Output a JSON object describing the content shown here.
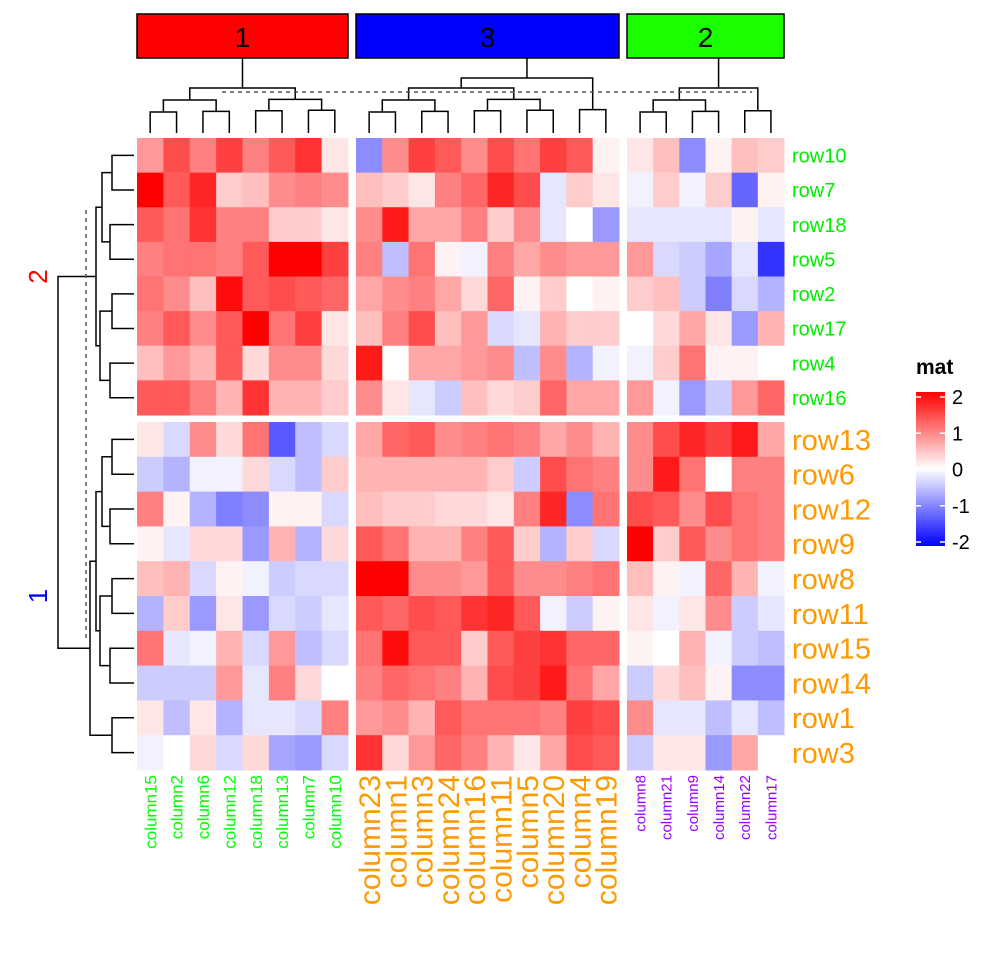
{
  "chart_data": {
    "type": "heatmap",
    "title": "",
    "legend": {
      "title": "mat",
      "ticks": [
        "2",
        "1",
        "0",
        "-1",
        "-2"
      ],
      "colors": {
        "low": "#0000ff",
        "mid": "#ffffff",
        "high": "#ff0000"
      },
      "range": [
        -2,
        2
      ],
      "placement": "right"
    },
    "column_slices": [
      {
        "label": "1",
        "color": "#ff0000",
        "label_color": "#00ff00",
        "columns": [
          "column15",
          "column2",
          "column6",
          "column12",
          "column18",
          "column13",
          "column7",
          "column10"
        ]
      },
      {
        "label": "3",
        "color": "#0000ff",
        "label_color": "#ff9900",
        "columns": [
          "column23",
          "column1",
          "column3",
          "column24",
          "column16",
          "column11",
          "column5",
          "column20",
          "column4",
          "column19"
        ]
      },
      {
        "label": "2",
        "color": "#1aff00",
        "label_color": "#9900ff",
        "columns": [
          "column8",
          "column21",
          "column9",
          "column14",
          "column22",
          "column17"
        ]
      }
    ],
    "row_slices": [
      {
        "label": "2",
        "color": "#ff0000",
        "label_color": "#00ee00",
        "rows": [
          "row10",
          "row7",
          "row18",
          "row5",
          "row2",
          "row17",
          "row4",
          "row16"
        ]
      },
      {
        "label": "1",
        "color": "#0000ff",
        "label_color": "#ff9900",
        "rows": [
          "row13",
          "row6",
          "row12",
          "row9",
          "row8",
          "row11",
          "row15",
          "row14",
          "row1",
          "row3"
        ]
      }
    ],
    "values": [
      [
        0.8,
        1.4,
        1.0,
        1.5,
        1.0,
        1.3,
        1.6,
        0.2,
        -0.9,
        0.9,
        1.5,
        1.3,
        0.9,
        1.4,
        1.1,
        1.5,
        1.3,
        0.1,
        0.2,
        0.5,
        -0.9,
        0.1,
        0.5,
        0.4
      ],
      [
        2.0,
        1.3,
        1.7,
        0.4,
        0.5,
        0.9,
        1.0,
        0.9,
        0.5,
        0.4,
        0.2,
        1.0,
        1.2,
        1.7,
        1.4,
        -0.2,
        0.4,
        0.2,
        -0.1,
        0.4,
        -0.1,
        0.4,
        -1.2,
        0.1
      ],
      [
        1.3,
        1.1,
        1.6,
        1.0,
        1.0,
        0.4,
        0.4,
        0.2,
        0.9,
        1.8,
        0.7,
        0.7,
        1.0,
        0.4,
        0.9,
        -0.2,
        0.0,
        -0.8,
        -0.2,
        -0.2,
        -0.2,
        -0.2,
        0.1,
        -0.2
      ],
      [
        1.0,
        1.1,
        1.1,
        1.0,
        1.3,
        2.0,
        2.0,
        1.5,
        1.0,
        -0.5,
        1.1,
        0.1,
        -0.1,
        1.0,
        0.7,
        0.9,
        0.8,
        0.8,
        0.8,
        -0.3,
        -0.4,
        -0.7,
        -0.2,
        -1.6
      ],
      [
        1.1,
        0.9,
        0.5,
        1.9,
        1.3,
        1.4,
        1.3,
        1.2,
        0.7,
        0.9,
        1.0,
        0.7,
        0.3,
        1.2,
        0.1,
        0.4,
        0.0,
        0.1,
        0.4,
        0.5,
        -0.4,
        -1.0,
        -0.3,
        -0.6
      ],
      [
        1.0,
        1.3,
        0.9,
        1.3,
        2.0,
        1.1,
        1.5,
        0.2,
        0.5,
        1.0,
        1.4,
        0.5,
        0.8,
        -0.3,
        -0.2,
        0.6,
        0.4,
        0.4,
        0.0,
        0.3,
        0.7,
        0.2,
        -0.8,
        0.6
      ],
      [
        0.5,
        0.8,
        0.6,
        1.3,
        0.3,
        0.9,
        0.9,
        0.3,
        1.8,
        0.0,
        0.7,
        0.7,
        0.8,
        0.9,
        -0.5,
        0.9,
        -0.6,
        -0.1,
        -0.1,
        0.4,
        1.1,
        0.1,
        0.1,
        0.0
      ],
      [
        1.3,
        1.3,
        1.0,
        0.6,
        1.6,
        0.6,
        0.6,
        0.4,
        0.9,
        0.2,
        -0.2,
        -0.4,
        0.5,
        0.3,
        0.4,
        1.2,
        0.7,
        0.7,
        0.8,
        -0.1,
        -0.8,
        -0.4,
        0.8,
        1.2
      ],
      [
        0.2,
        -0.3,
        0.9,
        0.3,
        1.1,
        -1.3,
        -0.5,
        -0.3,
        0.7,
        1.2,
        1.3,
        0.9,
        1.0,
        1.1,
        1.0,
        0.7,
        0.9,
        0.6,
        0.9,
        1.4,
        1.7,
        1.5,
        1.8,
        0.7
      ],
      [
        -0.4,
        -0.6,
        -0.1,
        -0.1,
        0.3,
        -0.3,
        -0.5,
        0.4,
        0.6,
        0.6,
        0.6,
        0.6,
        0.6,
        0.4,
        -0.4,
        1.4,
        1.1,
        1.0,
        0.9,
        1.8,
        1.1,
        0.0,
        1.0,
        1.0
      ],
      [
        1.0,
        0.1,
        -0.6,
        -1.0,
        -0.9,
        0.1,
        0.1,
        -0.3,
        0.5,
        0.4,
        0.4,
        0.3,
        0.3,
        0.2,
        1.0,
        1.7,
        -0.9,
        1.1,
        1.4,
        1.3,
        0.9,
        1.4,
        1.1,
        1.0
      ],
      [
        0.1,
        -0.2,
        0.3,
        0.3,
        -0.8,
        0.6,
        -0.6,
        0.3,
        1.3,
        1.1,
        0.6,
        0.6,
        1.0,
        1.3,
        0.4,
        -0.6,
        0.4,
        -0.3,
        2.0,
        0.4,
        1.3,
        0.9,
        1.1,
        1.0
      ],
      [
        0.5,
        0.6,
        -0.3,
        0.1,
        -0.1,
        -0.4,
        -0.3,
        -0.3,
        2.0,
        2.0,
        0.9,
        0.9,
        0.8,
        1.3,
        0.9,
        0.9,
        1.0,
        1.1,
        0.5,
        0.1,
        -0.1,
        1.2,
        0.6,
        -0.1
      ],
      [
        -0.6,
        0.4,
        -0.8,
        0.2,
        -0.8,
        -0.3,
        -0.4,
        -0.2,
        1.3,
        1.2,
        1.4,
        1.3,
        1.6,
        1.7,
        1.3,
        -0.1,
        -0.4,
        0.1,
        0.2,
        -0.1,
        0.2,
        0.9,
        -0.4,
        -0.2
      ],
      [
        1.1,
        -0.2,
        -0.1,
        0.6,
        -0.3,
        0.8,
        -0.5,
        -0.3,
        1.1,
        1.9,
        1.3,
        1.3,
        0.4,
        1.3,
        1.5,
        1.6,
        1.2,
        1.2,
        0.1,
        0.0,
        0.6,
        -0.1,
        -0.4,
        -0.5
      ],
      [
        -0.4,
        -0.4,
        -0.4,
        0.8,
        -0.2,
        1.0,
        0.3,
        0.0,
        1.0,
        1.2,
        1.1,
        1.0,
        0.6,
        1.4,
        1.5,
        1.8,
        1.1,
        0.7,
        -0.4,
        0.3,
        0.5,
        0.1,
        -0.9,
        -0.9
      ],
      [
        0.2,
        -0.5,
        0.2,
        -0.6,
        -0.2,
        -0.2,
        -0.3,
        1.0,
        0.8,
        0.9,
        0.6,
        1.3,
        1.1,
        1.1,
        1.1,
        1.0,
        1.5,
        1.4,
        0.9,
        -0.2,
        -0.2,
        -0.5,
        -0.2,
        -0.5
      ],
      [
        -0.1,
        0.0,
        0.3,
        -0.3,
        0.3,
        -0.7,
        -0.8,
        -0.3,
        1.6,
        0.3,
        0.8,
        1.2,
        1.0,
        0.6,
        0.2,
        0.7,
        1.4,
        1.3,
        -0.4,
        0.2,
        0.2,
        -0.8,
        0.7,
        0.0
      ]
    ]
  }
}
